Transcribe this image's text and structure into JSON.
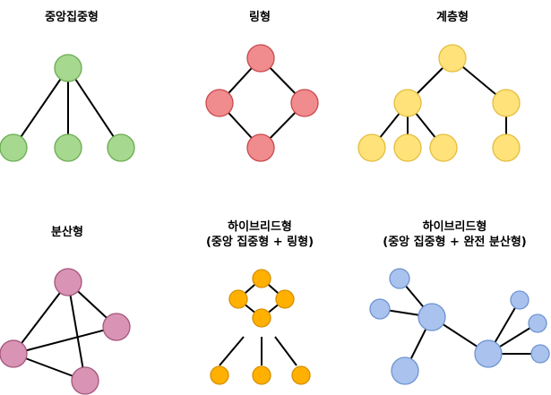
{
  "panels": [
    {
      "id": "star",
      "title": "중앙집중형",
      "subtitle": "",
      "fill": "#a6d88f",
      "stroke": "#6aad52",
      "nodes": [
        {
          "id": "hub"
        },
        {
          "id": "leaf-1"
        },
        {
          "id": "leaf-2"
        },
        {
          "id": "leaf-3"
        }
      ],
      "edges": [
        [
          "hub",
          "leaf-1"
        ],
        [
          "hub",
          "leaf-2"
        ],
        [
          "hub",
          "leaf-3"
        ]
      ]
    },
    {
      "id": "ring",
      "title": "링형",
      "subtitle": "",
      "fill": "#f08c8e",
      "stroke": "#c9484c",
      "nodes": [
        {
          "id": "top"
        },
        {
          "id": "left"
        },
        {
          "id": "right"
        },
        {
          "id": "bottom"
        }
      ],
      "edges": [
        [
          "top",
          "left"
        ],
        [
          "top",
          "right"
        ],
        [
          "left",
          "bottom"
        ],
        [
          "right",
          "bottom"
        ]
      ]
    },
    {
      "id": "tree",
      "title": "계층형",
      "subtitle": "",
      "fill": "#ffe27a",
      "stroke": "#e3be3f",
      "nodes": [
        {
          "id": "root"
        },
        {
          "id": "mid-left"
        },
        {
          "id": "mid-right"
        },
        {
          "id": "leaf-1"
        },
        {
          "id": "leaf-2"
        },
        {
          "id": "leaf-3"
        },
        {
          "id": "leaf-4"
        }
      ],
      "edges": [
        [
          "root",
          "mid-left"
        ],
        [
          "root",
          "mid-right"
        ],
        [
          "mid-left",
          "leaf-1"
        ],
        [
          "mid-left",
          "leaf-2"
        ],
        [
          "mid-left",
          "leaf-3"
        ],
        [
          "mid-right",
          "leaf-4"
        ]
      ]
    },
    {
      "id": "mesh",
      "title": "분산형",
      "subtitle": "",
      "fill": "#d994b5",
      "stroke": "#a4557b",
      "nodes": [
        {
          "id": "top"
        },
        {
          "id": "right"
        },
        {
          "id": "left"
        },
        {
          "id": "bottom"
        }
      ],
      "edges": [
        [
          "top",
          "left"
        ],
        [
          "top",
          "right"
        ],
        [
          "top",
          "bottom"
        ],
        [
          "left",
          "right"
        ],
        [
          "left",
          "bottom"
        ]
      ]
    },
    {
      "id": "hybrid-ring",
      "title": "하이브리드형",
      "subtitle": "(중앙 집중형 + 링형)",
      "fill": "#ffb000",
      "stroke": "#d68f00",
      "nodes": [
        {
          "id": "ring-top"
        },
        {
          "id": "ring-left"
        },
        {
          "id": "ring-right"
        },
        {
          "id": "ring-bottom"
        },
        {
          "id": "leaf-1"
        },
        {
          "id": "leaf-2"
        },
        {
          "id": "leaf-3"
        }
      ],
      "edges": [
        [
          "ring-top",
          "ring-left"
        ],
        [
          "ring-top",
          "ring-right"
        ],
        [
          "ring-left",
          "ring-bottom"
        ],
        [
          "ring-right",
          "ring-bottom"
        ]
      ],
      "stubs": [
        "leaf-1",
        "leaf-2",
        "leaf-3"
      ]
    },
    {
      "id": "hybrid-mesh",
      "title": "하이브리드형",
      "subtitle": "(중앙 집중형 + 완전 분산형)",
      "fill": "#a9c3ee",
      "stroke": "#6f93d0",
      "nodes": [
        {
          "id": "top-left"
        },
        {
          "id": "left"
        },
        {
          "id": "hub-1"
        },
        {
          "id": "bottom-left"
        },
        {
          "id": "hub-2"
        },
        {
          "id": "right-1"
        },
        {
          "id": "right-2"
        },
        {
          "id": "right-3"
        }
      ],
      "edges": [
        [
          "top-left",
          "hub-1"
        ],
        [
          "left",
          "hub-1"
        ],
        [
          "hub-1",
          "bottom-left"
        ],
        [
          "hub-1",
          "hub-2"
        ],
        [
          "hub-2",
          "right-1"
        ],
        [
          "hub-2",
          "right-2"
        ],
        [
          "hub-2",
          "right-3"
        ]
      ]
    }
  ]
}
